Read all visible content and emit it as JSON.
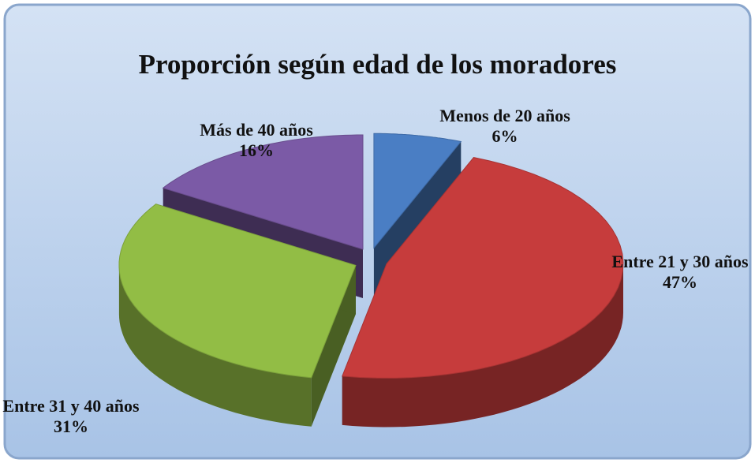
{
  "chart_data": {
    "type": "pie",
    "title": "Proporción según edad de los moradores",
    "categories": [
      "Menos de 20 años",
      "Entre 21 y 30 años",
      "Entre 31 y 40 años",
      "Más de 40 años"
    ],
    "values": [
      6,
      47,
      31,
      16
    ],
    "value_labels": [
      "6%",
      "47%",
      "31%",
      "16%"
    ],
    "colors": [
      "#4a7ec4",
      "#c63c3c",
      "#92bd45",
      "#7b5aa6"
    ]
  }
}
